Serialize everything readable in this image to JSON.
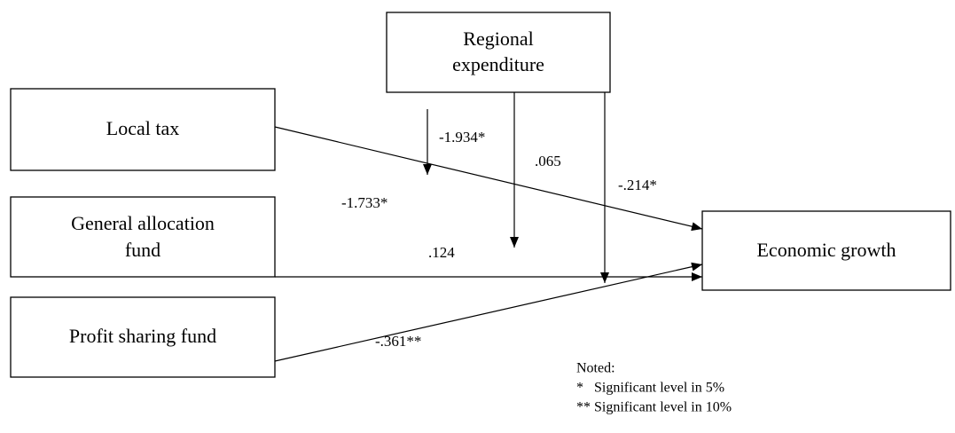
{
  "nodes": [
    {
      "lines": [
        "Regional",
        "expenditure"
      ]
    },
    {
      "lines": [
        "Local tax"
      ]
    },
    {
      "lines": [
        "General allocation",
        "fund"
      ]
    },
    {
      "lines": [
        "Profit sharing fund"
      ]
    },
    {
      "lines": [
        "Economic growth"
      ]
    }
  ],
  "coefficients": [
    "-1.934*",
    ".065",
    "-.214*",
    "-1.733*",
    ".124",
    "-.361**"
  ],
  "notes": [
    "Noted:",
    "*   Significant level in 5%",
    "** Significant level in 10%"
  ]
}
